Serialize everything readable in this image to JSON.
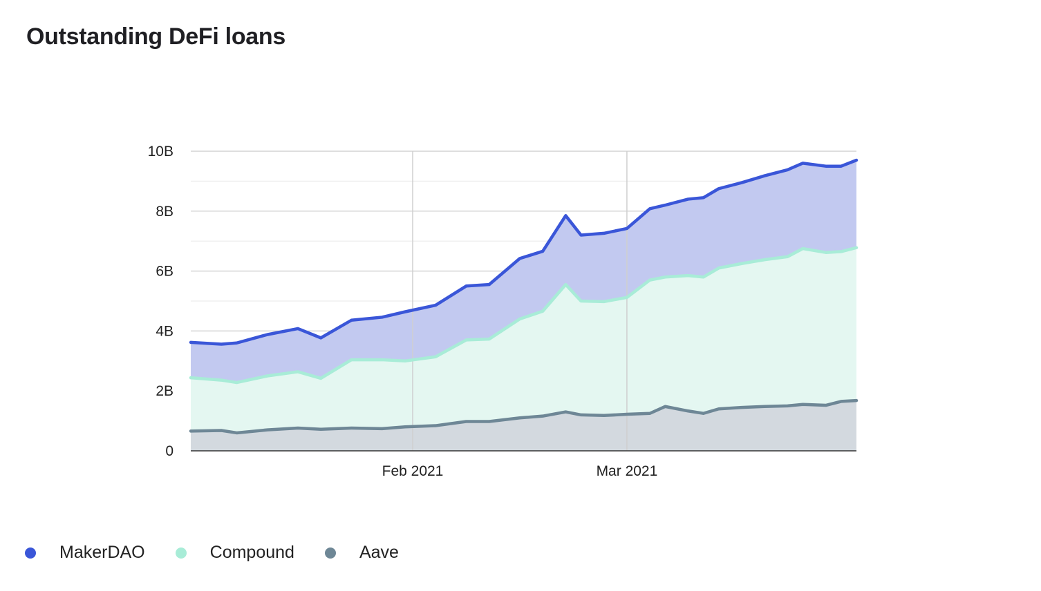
{
  "chart_data": {
    "type": "area",
    "stacked": true,
    "title": "Outstanding DeFi loans",
    "xlabel": "",
    "ylabel": "",
    "x_start": "2021-01-03",
    "x_end": "2021-03-31",
    "x_ticks": [
      {
        "date": "2021-02-01",
        "label": "Feb 2021"
      },
      {
        "date": "2021-03-01",
        "label": "Mar 2021"
      }
    ],
    "y_ticks": [
      {
        "value": 0,
        "label": "0"
      },
      {
        "value": 2000000000,
        "label": "2B"
      },
      {
        "value": 4000000000,
        "label": "4B"
      },
      {
        "value": 6000000000,
        "label": "6B"
      },
      {
        "value": 8000000000,
        "label": "8B"
      },
      {
        "value": 10000000000,
        "label": "10B"
      }
    ],
    "ylim": [
      0,
      10000000000
    ],
    "grid": true,
    "legend_position": "bottom-left",
    "series": [
      {
        "name": "Aave",
        "color": "#6e8796",
        "fill": "#d3d9df",
        "points": [
          [
            "2021-01-03",
            0.66
          ],
          [
            "2021-01-07",
            0.68
          ],
          [
            "2021-01-09",
            0.6
          ],
          [
            "2021-01-13",
            0.7
          ],
          [
            "2021-01-17",
            0.76
          ],
          [
            "2021-01-20",
            0.72
          ],
          [
            "2021-01-24",
            0.76
          ],
          [
            "2021-01-28",
            0.74
          ],
          [
            "2021-01-31",
            0.8
          ],
          [
            "2021-02-04",
            0.84
          ],
          [
            "2021-02-08",
            0.98
          ],
          [
            "2021-02-11",
            0.98
          ],
          [
            "2021-02-15",
            1.1
          ],
          [
            "2021-02-18",
            1.16
          ],
          [
            "2021-02-21",
            1.3
          ],
          [
            "2021-02-23",
            1.2
          ],
          [
            "2021-02-26",
            1.18
          ],
          [
            "2021-03-01",
            1.22
          ],
          [
            "2021-03-04",
            1.25
          ],
          [
            "2021-03-06",
            1.48
          ],
          [
            "2021-03-09",
            1.33
          ],
          [
            "2021-03-11",
            1.25
          ],
          [
            "2021-03-13",
            1.4
          ],
          [
            "2021-03-16",
            1.45
          ],
          [
            "2021-03-19",
            1.48
          ],
          [
            "2021-03-22",
            1.5
          ],
          [
            "2021-03-24",
            1.55
          ],
          [
            "2021-03-27",
            1.52
          ],
          [
            "2021-03-29",
            1.65
          ],
          [
            "2021-03-31",
            1.68
          ]
        ]
      },
      {
        "name": "Compound",
        "color": "#a8ecd7",
        "fill": "#e4f7f1",
        "points": [
          [
            "2021-01-03",
            1.78
          ],
          [
            "2021-01-07",
            1.68
          ],
          [
            "2021-01-09",
            1.68
          ],
          [
            "2021-01-13",
            1.8
          ],
          [
            "2021-01-17",
            1.88
          ],
          [
            "2021-01-20",
            1.7
          ],
          [
            "2021-01-24",
            2.28
          ],
          [
            "2021-01-28",
            2.3
          ],
          [
            "2021-01-31",
            2.2
          ],
          [
            "2021-02-04",
            2.3
          ],
          [
            "2021-02-08",
            2.72
          ],
          [
            "2021-02-11",
            2.75
          ],
          [
            "2021-02-15",
            3.3
          ],
          [
            "2021-02-18",
            3.5
          ],
          [
            "2021-02-21",
            4.25
          ],
          [
            "2021-02-23",
            3.8
          ],
          [
            "2021-02-26",
            3.8
          ],
          [
            "2021-03-01",
            3.9
          ],
          [
            "2021-03-04",
            4.45
          ],
          [
            "2021-03-06",
            4.32
          ],
          [
            "2021-03-09",
            4.52
          ],
          [
            "2021-03-11",
            4.55
          ],
          [
            "2021-03-13",
            4.7
          ],
          [
            "2021-03-16",
            4.8
          ],
          [
            "2021-03-19",
            4.9
          ],
          [
            "2021-03-22",
            4.98
          ],
          [
            "2021-03-24",
            5.2
          ],
          [
            "2021-03-27",
            5.1
          ],
          [
            "2021-03-29",
            5.0
          ],
          [
            "2021-03-31",
            5.1
          ]
        ]
      },
      {
        "name": "MakerDAO",
        "color": "#3a56d8",
        "fill": "#c2c9f0",
        "points": [
          [
            "2021-01-03",
            1.18
          ],
          [
            "2021-01-07",
            1.2
          ],
          [
            "2021-01-09",
            1.32
          ],
          [
            "2021-01-13",
            1.38
          ],
          [
            "2021-01-17",
            1.44
          ],
          [
            "2021-01-20",
            1.35
          ],
          [
            "2021-01-24",
            1.32
          ],
          [
            "2021-01-28",
            1.42
          ],
          [
            "2021-01-31",
            1.64
          ],
          [
            "2021-02-04",
            1.72
          ],
          [
            "2021-02-08",
            1.8
          ],
          [
            "2021-02-11",
            1.82
          ],
          [
            "2021-02-15",
            2.02
          ],
          [
            "2021-02-18",
            2.0
          ],
          [
            "2021-02-21",
            2.3
          ],
          [
            "2021-02-23",
            2.2
          ],
          [
            "2021-02-26",
            2.28
          ],
          [
            "2021-03-01",
            2.3
          ],
          [
            "2021-03-04",
            2.38
          ],
          [
            "2021-03-06",
            2.4
          ],
          [
            "2021-03-09",
            2.55
          ],
          [
            "2021-03-11",
            2.65
          ],
          [
            "2021-03-13",
            2.65
          ],
          [
            "2021-03-16",
            2.7
          ],
          [
            "2021-03-19",
            2.8
          ],
          [
            "2021-03-22",
            2.9
          ],
          [
            "2021-03-24",
            2.85
          ],
          [
            "2021-03-27",
            2.88
          ],
          [
            "2021-03-29",
            2.85
          ],
          [
            "2021-03-31",
            2.92
          ]
        ]
      }
    ]
  },
  "legend": {
    "items": [
      {
        "label": "MakerDAO",
        "color": "#3a56d8"
      },
      {
        "label": "Compound",
        "color": "#a8ecd7"
      },
      {
        "label": "Aave",
        "color": "#6e8796"
      }
    ]
  }
}
